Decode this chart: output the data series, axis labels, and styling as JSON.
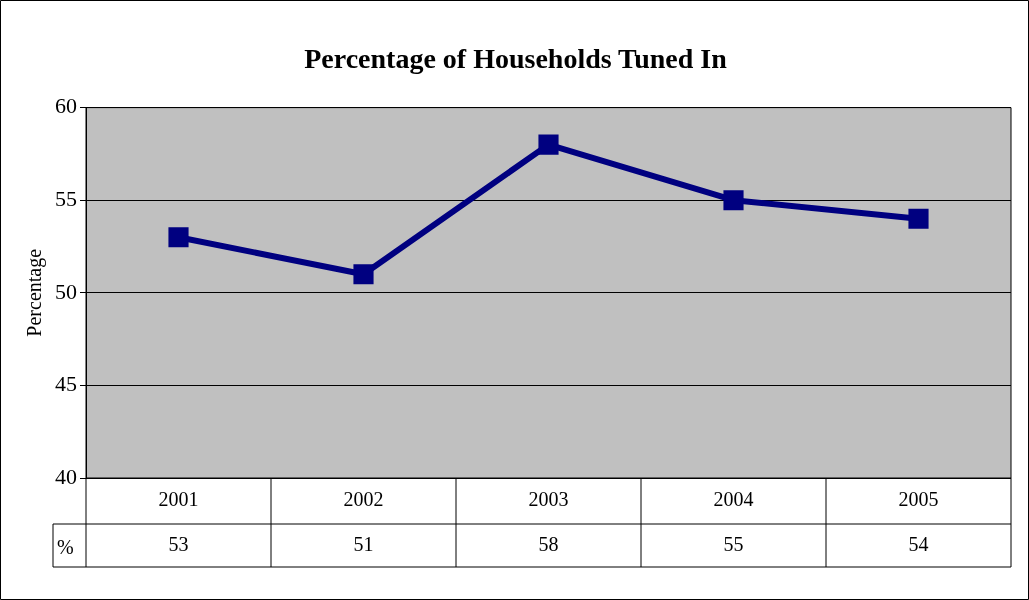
{
  "chart_data": {
    "type": "line",
    "title": "Percentage of Households Tuned In",
    "ylabel": "Percentage",
    "categories": [
      "2001",
      "2002",
      "2003",
      "2004",
      "2005"
    ],
    "series": [
      {
        "name": "%",
        "color": "#000080",
        "values": [
          53,
          51,
          58,
          55,
          54
        ]
      }
    ],
    "ylim": [
      40,
      60
    ],
    "yticks": [
      40,
      45,
      50,
      55,
      60
    ],
    "grid": "y",
    "marker": "square",
    "line_style": "solid",
    "data_labels": true,
    "legend": false
  }
}
